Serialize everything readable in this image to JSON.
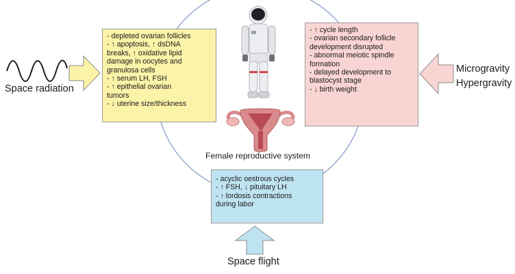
{
  "diagram": {
    "center_label": "Female reproductive system",
    "stressors": {
      "space_radiation": "Space radiation",
      "microgravity": "Microgravity",
      "hypergravity": "Hypergravity",
      "space_flight": "Space flight"
    },
    "effects_space_radiation": [
      "- depleted ovarian follicles",
      "- ↑ apoptosis, ↑ dsDNA",
      "breaks, ↑ oxidative lipid",
      "damage in oocytes and",
      "granulosa cells",
      "- ↑ serum LH, FSH",
      "- ↑ epithelial ovarian",
      "tumors",
      "- ↓ uterine size/thickness"
    ],
    "effects_gravity": [
      "- ↑ cycle length",
      "- ovarian secondary follicle",
      "development disrupted",
      "- abnormal meiotic spindle",
      "formation",
      "- delayed development to",
      "blastocyst stage",
      "- ↓ birth weight"
    ],
    "effects_space_flight": [
      "- acyclic oestrous cycles",
      "- ↑ FSH, ↓ pituitary LH",
      "- ↑ lordosis contractions",
      "during labor"
    ]
  },
  "colors": {
    "radiation_box": "#fbf3a8",
    "gravity_box": "#f8d5d3",
    "flight_box": "#bfe4f1",
    "circle": "#8fa6cf",
    "uterus": "#d98a8c"
  },
  "icons": [
    "sine-wave-icon",
    "astronaut-icon",
    "uterus-icon",
    "arrow-right-icon",
    "arrow-left-icon",
    "arrow-up-icon"
  ]
}
